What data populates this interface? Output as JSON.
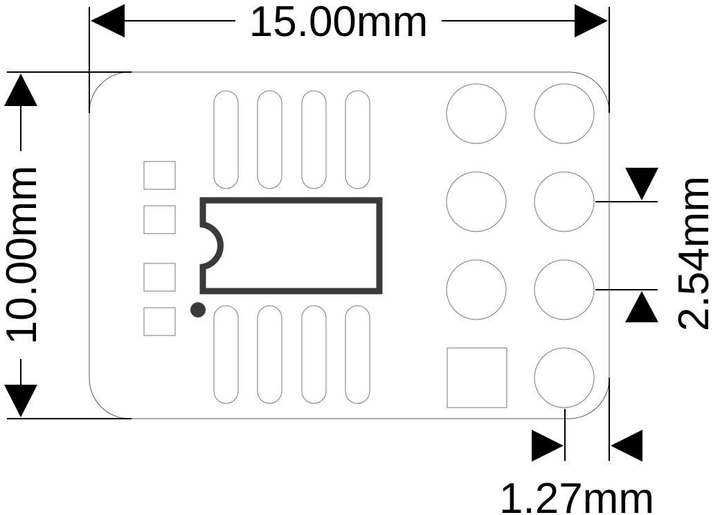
{
  "dimensions": {
    "width_label": "15.00mm",
    "height_label": "10.00mm",
    "pitch_label": "2.54mm",
    "edge_offset_label": "1.27mm"
  },
  "colors": {
    "background": "#ffffff",
    "outline": "#555555",
    "silkscreen": "#3a3a3a",
    "dimension": "#000000"
  },
  "board": {
    "soic_pad_count": 8,
    "smd_square_pad_count": 4,
    "header_hole_count": 8,
    "square_pad_count": 1
  }
}
